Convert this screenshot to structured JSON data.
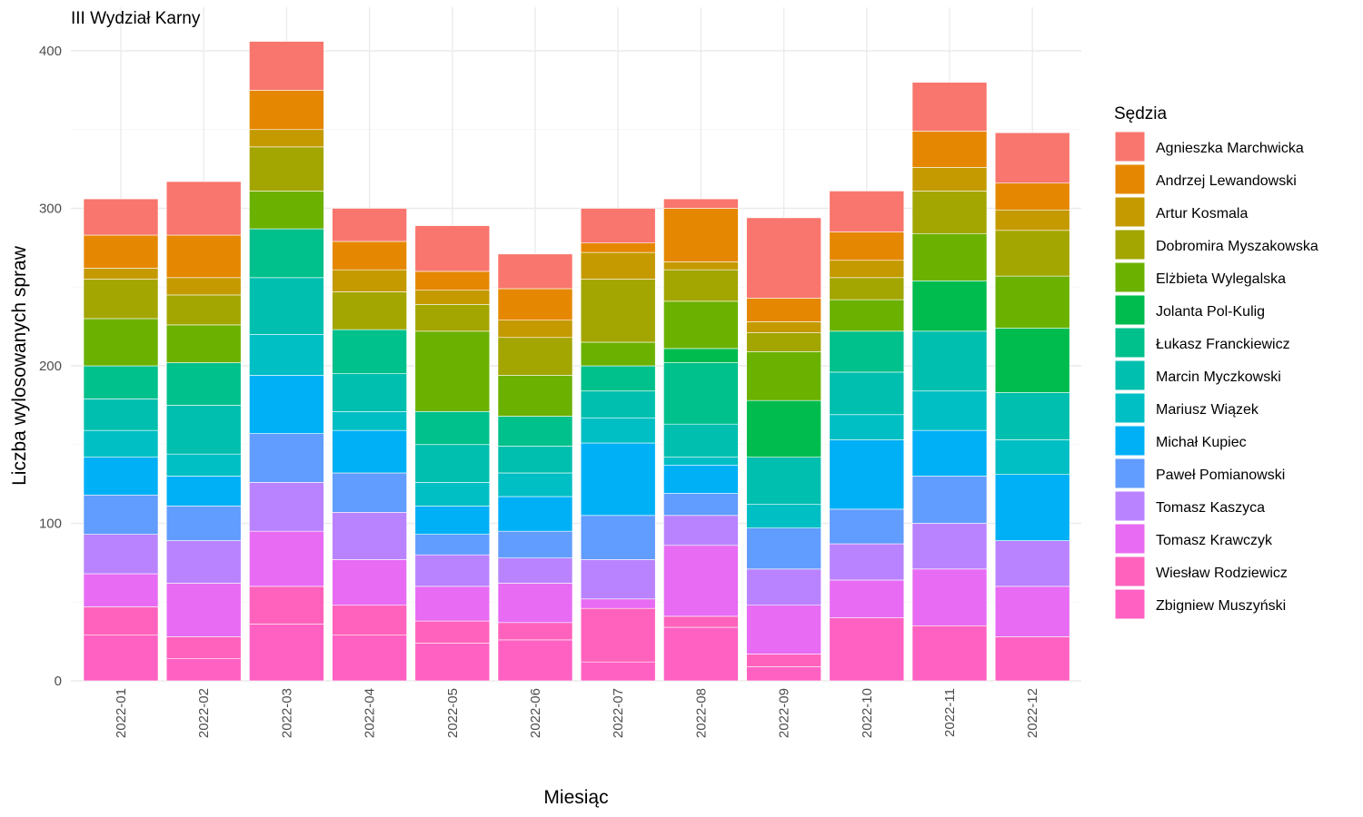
{
  "chart_data": {
    "type": "bar",
    "stacked": true,
    "title": "III Wydział Karny",
    "xlabel": "Miesiąc",
    "ylabel": "Liczba wylosowanych spraw",
    "ylim": [
      0,
      420
    ],
    "yticks": [
      0,
      100,
      200,
      300,
      400
    ],
    "grid": true,
    "legend_position": "right",
    "legend_title": "Sędzia",
    "categories": [
      "2022-01",
      "2022-02",
      "2022-03",
      "2022-04",
      "2022-05",
      "2022-06",
      "2022-07",
      "2022-08",
      "2022-09",
      "2022-10",
      "2022-11",
      "2022-12"
    ],
    "series": [
      {
        "name": "Zbigniew Muszyński",
        "color": "#FF61C3",
        "values": [
          29,
          14,
          36,
          29,
          24,
          26,
          12,
          34,
          9,
          40,
          35,
          28
        ]
      },
      {
        "name": "Wiesław Rodziewicz",
        "color": "#FF62BC",
        "values": [
          18,
          14,
          24,
          19,
          14,
          11,
          34,
          7,
          8,
          0,
          0,
          0
        ]
      },
      {
        "name": "Tomasz Krawczyk",
        "color": "#E76BF3",
        "values": [
          21,
          34,
          35,
          29,
          22,
          25,
          6,
          45,
          31,
          24,
          36,
          32
        ]
      },
      {
        "name": "Tomasz Kaszyca",
        "color": "#B983FF",
        "values": [
          25,
          27,
          31,
          30,
          20,
          16,
          25,
          19,
          23,
          23,
          29,
          29
        ]
      },
      {
        "name": "Paweł Pomianowski",
        "color": "#619CFF",
        "values": [
          25,
          22,
          31,
          25,
          13,
          17,
          28,
          14,
          26,
          22,
          30,
          0
        ]
      },
      {
        "name": "Michał Kupiec",
        "color": "#00B0F6",
        "values": [
          24,
          19,
          37,
          27,
          18,
          22,
          46,
          18,
          0,
          44,
          29,
          42
        ]
      },
      {
        "name": "Mariusz Wiązek",
        "color": "#00BFC4",
        "values": [
          17,
          14,
          26,
          12,
          15,
          15,
          16,
          5,
          15,
          16,
          25,
          22
        ]
      },
      {
        "name": "Marcin Myczkowski",
        "color": "#00BFAE",
        "values": [
          20,
          31,
          36,
          24,
          24,
          17,
          17,
          21,
          30,
          27,
          38,
          30
        ]
      },
      {
        "name": "Łukasz Franckiewicz",
        "color": "#00C08B",
        "values": [
          21,
          27,
          31,
          28,
          21,
          19,
          16,
          39,
          0,
          26,
          0,
          0
        ]
      },
      {
        "name": "Jolanta Pol-Kulig",
        "color": "#00BB4E",
        "values": [
          0,
          0,
          0,
          0,
          0,
          0,
          0,
          9,
          36,
          0,
          32,
          41
        ]
      },
      {
        "name": "Elżbieta Wylegalska",
        "color": "#6BB100",
        "values": [
          30,
          24,
          24,
          0,
          51,
          26,
          15,
          30,
          31,
          20,
          30,
          33
        ]
      },
      {
        "name": "Dobromira Myszakowska",
        "color": "#A3A500",
        "values": [
          25,
          19,
          28,
          24,
          17,
          24,
          40,
          20,
          12,
          14,
          27,
          29
        ]
      },
      {
        "name": "Artur Kosmala",
        "color": "#C49A00",
        "values": [
          7,
          11,
          11,
          14,
          9,
          11,
          17,
          5,
          7,
          11,
          15,
          13
        ]
      },
      {
        "name": "Andrzej Lewandowski",
        "color": "#E58700",
        "values": [
          21,
          27,
          25,
          18,
          12,
          20,
          6,
          34,
          15,
          18,
          23,
          17
        ]
      },
      {
        "name": "Agnieszka Marchwicka",
        "color": "#F8766D",
        "values": [
          23,
          34,
          31,
          21,
          29,
          22,
          22,
          6,
          51,
          26,
          31,
          32
        ]
      }
    ],
    "legend_order": [
      "Agnieszka Marchwicka",
      "Andrzej Lewandowski",
      "Artur Kosmala",
      "Dobromira Myszakowska",
      "Elżbieta Wylegalska",
      "Jolanta Pol-Kulig",
      "Łukasz Franckiewicz",
      "Marcin Myczkowski",
      "Mariusz Wiązek",
      "Michał Kupiec",
      "Paweł Pomianowski",
      "Tomasz Kaszyca",
      "Tomasz Krawczyk",
      "Wiesław Rodziewicz",
      "Zbigniew Muszyński"
    ]
  }
}
